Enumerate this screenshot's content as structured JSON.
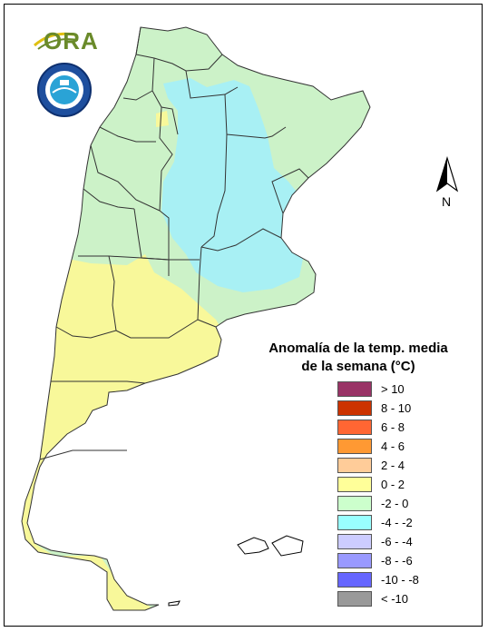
{
  "logos": {
    "ora_text": "ORA",
    "ora_icon": "ora-sun-arc-icon",
    "smn_icon": "smn-seal-icon"
  },
  "north_arrow": {
    "label": "N",
    "icon": "north-arrow-icon"
  },
  "legend": {
    "title_line1": "Anomalía de la temp. media",
    "title_line2": "de la semana (°C)",
    "items": [
      {
        "label": "> 10",
        "color": "#993366"
      },
      {
        "label": "8 - 10",
        "color": "#cc3300"
      },
      {
        "label": "6 - 8",
        "color": "#ff6633"
      },
      {
        "label": "4 - 6",
        "color": "#ff9933"
      },
      {
        "label": "2 - 4",
        "color": "#ffcc99"
      },
      {
        "label": "0 - 2",
        "color": "#ffff99"
      },
      {
        "label": "-2 - 0",
        "color": "#ccffcc"
      },
      {
        "label": "-4 - -2",
        "color": "#99ffff"
      },
      {
        "label": "-6 - -4",
        "color": "#ccccff"
      },
      {
        "label": "-8 - -6",
        "color": "#9999ff"
      },
      {
        "label": "-10 - -8",
        "color": "#6666ff"
      },
      {
        "label": "< -10",
        "color": "#999999"
      }
    ]
  },
  "map_colors": {
    "green": "#ccf2c8",
    "cyan": "#a8f0f4",
    "yellow": "#f8f89a",
    "orange": "#f7c7a0",
    "border": "#333333"
  }
}
